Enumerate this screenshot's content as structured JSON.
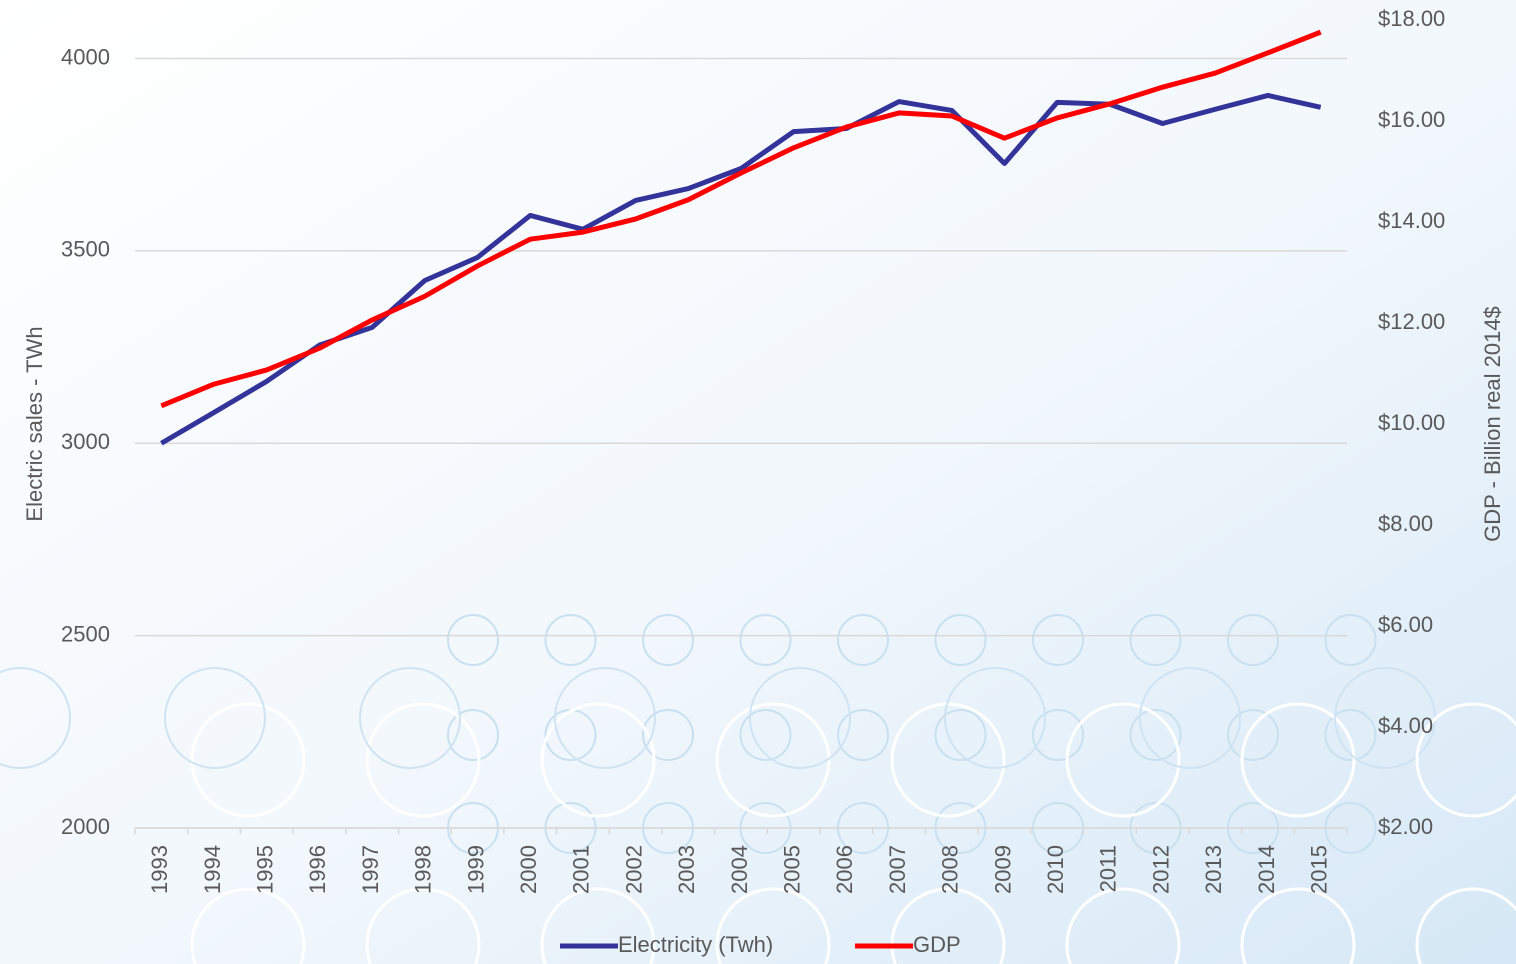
{
  "chart_data": {
    "type": "line",
    "y_label": "Electric sales - TWh",
    "y2_label": "GDP - Billion real 2014$",
    "categories": [
      "1993",
      "1994",
      "1995",
      "1996",
      "1997",
      "1998",
      "1999",
      "2000",
      "2001",
      "2002",
      "2003",
      "2004",
      "2005",
      "2006",
      "2007",
      "2008",
      "2009",
      "2010",
      "2011",
      "2012",
      "2013",
      "2014",
      "2015"
    ],
    "series": [
      {
        "name": "Electricity (Twh)",
        "color": "#333399",
        "values": [
          3000,
          3080,
          3161,
          3255,
          3301,
          3423,
          3483,
          3592,
          3556,
          3631,
          3662,
          3714,
          3810,
          3818,
          3888,
          3865,
          3727,
          3886,
          3881,
          3831,
          3868,
          3904,
          3873
        ]
      },
      {
        "name": "GDP",
        "color": "#ff0000",
        "axis": "y2",
        "values": [
          10.36,
          10.79,
          11.07,
          11.5,
          12.06,
          12.53,
          13.13,
          13.66,
          13.8,
          14.06,
          14.44,
          14.97,
          15.47,
          15.88,
          16.16,
          16.1,
          15.66,
          16.06,
          16.34,
          16.67,
          16.95,
          17.35,
          17.76
        ]
      }
    ],
    "ylim": [
      2000,
      4100
    ],
    "yticks": [
      2000,
      2500,
      3000,
      3500,
      4000
    ],
    "y2lim": [
      2,
      18
    ],
    "y2ticks": [
      {
        "value": 2,
        "label": "$2.00"
      },
      {
        "value": 4,
        "label": "$4.00"
      },
      {
        "value": 6,
        "label": "$6.00"
      },
      {
        "value": 8,
        "label": "$8.00"
      },
      {
        "value": 10,
        "label": "$10.00"
      },
      {
        "value": 12,
        "label": "$12.00"
      },
      {
        "value": 14,
        "label": "$14.00"
      },
      {
        "value": 16,
        "label": "$16.00"
      },
      {
        "value": 18,
        "label": "$18.00"
      }
    ],
    "grid": true,
    "legend": "bottom"
  }
}
